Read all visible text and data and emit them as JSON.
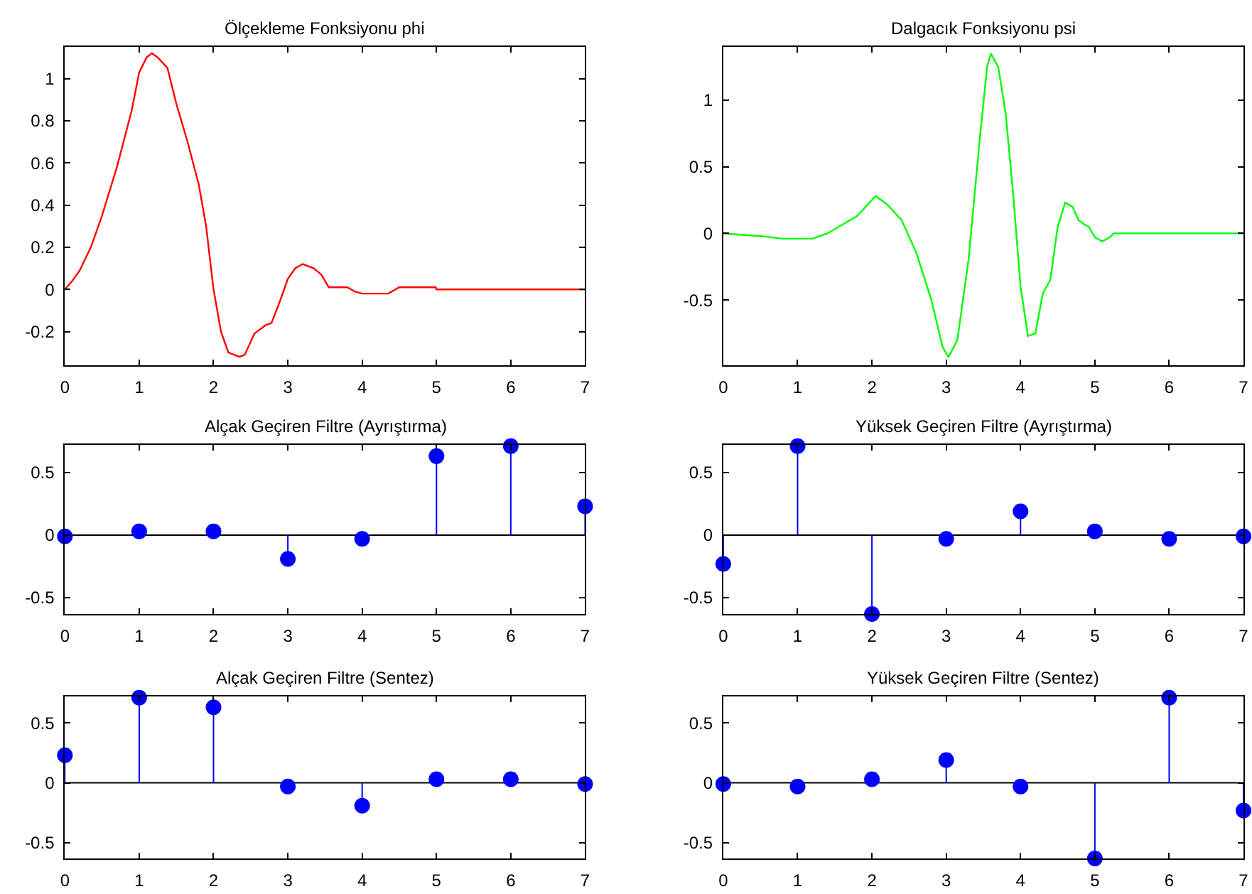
{
  "chart_data": [
    {
      "type": "line",
      "title": "Ölçekleme Fonksiyonu phi",
      "xlim": [
        0,
        7
      ],
      "ylim": [
        -0.36,
        1.15
      ],
      "xticks": [
        0,
        1,
        2,
        3,
        4,
        5,
        6,
        7
      ],
      "yticks": [
        -0.2,
        0,
        0.2,
        0.4,
        0.6,
        0.8,
        1
      ],
      "grid": false,
      "marker": "none",
      "series": [
        {
          "color": "#ff0000",
          "x": [
            0,
            0.1,
            0.2,
            0.35,
            0.5,
            0.7,
            0.9,
            1.0,
            1.1,
            1.17,
            1.25,
            1.38,
            1.5,
            1.65,
            1.8,
            1.9,
            2.0,
            2.1,
            2.2,
            2.35,
            2.42,
            2.55,
            2.7,
            2.78,
            2.9,
            3.0,
            3.1,
            3.2,
            3.35,
            3.45,
            3.55,
            3.7,
            3.8,
            3.9,
            4.0,
            4.2,
            4.35,
            4.5,
            4.99,
            5.0,
            7
          ],
          "values": [
            0,
            0.04,
            0.09,
            0.2,
            0.35,
            0.58,
            0.85,
            1.03,
            1.1,
            1.12,
            1.1,
            1.05,
            0.88,
            0.7,
            0.5,
            0.3,
            0.0,
            -0.2,
            -0.3,
            -0.32,
            -0.31,
            -0.21,
            -0.17,
            -0.16,
            -0.05,
            0.05,
            0.1,
            0.12,
            0.1,
            0.07,
            0.01,
            0.01,
            0.01,
            -0.01,
            -0.02,
            -0.02,
            -0.02,
            0.01,
            0.01,
            0,
            0
          ]
        }
      ]
    },
    {
      "type": "line",
      "title": "Dalgacık Fonksiyonu psi",
      "xlim": [
        0,
        7
      ],
      "ylim": [
        -0.99,
        1.4
      ],
      "xticks": [
        0,
        1,
        2,
        3,
        4,
        5,
        6,
        7
      ],
      "yticks": [
        -0.5,
        0,
        0.5,
        1
      ],
      "grid": false,
      "marker": "none",
      "series": [
        {
          "color": "#00ff00",
          "x": [
            0,
            0.5,
            0.8,
            1.2,
            1.4,
            1.8,
            2.05,
            2.2,
            2.4,
            2.6,
            2.8,
            2.95,
            3.03,
            3.15,
            3.3,
            3.45,
            3.55,
            3.6,
            3.7,
            3.8,
            3.9,
            4.0,
            4.1,
            4.2,
            4.3,
            4.4,
            4.5,
            4.6,
            4.7,
            4.78,
            4.85,
            4.92,
            5.0,
            5.1,
            5.2,
            5.25,
            7
          ],
          "values": [
            0,
            -0.02,
            -0.04,
            -0.04,
            0.0,
            0.13,
            0.28,
            0.22,
            0.1,
            -0.15,
            -0.5,
            -0.85,
            -0.93,
            -0.8,
            -0.2,
            0.7,
            1.25,
            1.35,
            1.25,
            0.9,
            0.3,
            -0.4,
            -0.77,
            -0.75,
            -0.45,
            -0.35,
            0.05,
            0.23,
            0.2,
            0.1,
            0.07,
            0.05,
            -0.03,
            -0.06,
            -0.03,
            0,
            0
          ]
        }
      ]
    },
    {
      "type": "lollipop",
      "ref_lines": [
        {
          "axis": "y",
          "value": 0
        }
      ],
      "title": "Alçak Geçiren Filtre (Ayrıştırma)",
      "x": [
        0,
        1,
        2,
        3,
        4,
        5,
        6,
        7
      ],
      "xlim": [
        0,
        7
      ],
      "ylim": [
        -0.63,
        0.72
      ],
      "xticks": [
        0,
        1,
        2,
        3,
        4,
        5,
        6,
        7
      ],
      "yticks": [
        -0.5,
        0,
        0.5
      ],
      "grid": false,
      "marker": "circle",
      "series": [
        {
          "color": "#0000ff",
          "values": [
            -0.01,
            0.03,
            0.03,
            -0.19,
            -0.03,
            0.63,
            0.71,
            0.23
          ]
        }
      ]
    },
    {
      "type": "lollipop",
      "ref_lines": [
        {
          "axis": "y",
          "value": 0
        }
      ],
      "title": "Yüksek Geçiren Filtre (Ayrıştırma)",
      "x": [
        0,
        1,
        2,
        3,
        4,
        5,
        6,
        7
      ],
      "xlim": [
        0,
        7
      ],
      "ylim": [
        -0.63,
        0.72
      ],
      "xticks": [
        0,
        1,
        2,
        3,
        4,
        5,
        6,
        7
      ],
      "yticks": [
        -0.5,
        0,
        0.5
      ],
      "grid": false,
      "marker": "circle",
      "series": [
        {
          "color": "#0000ff",
          "values": [
            -0.23,
            0.71,
            -0.63,
            -0.03,
            0.19,
            0.03,
            -0.03,
            -0.01
          ]
        }
      ]
    },
    {
      "type": "lollipop",
      "ref_lines": [
        {
          "axis": "y",
          "value": 0
        }
      ],
      "title": "Alçak Geçiren Filtre (Sentez)",
      "x": [
        0,
        1,
        2,
        3,
        4,
        5,
        6,
        7
      ],
      "xlim": [
        0,
        7
      ],
      "ylim": [
        -0.63,
        0.72
      ],
      "xticks": [
        0,
        1,
        2,
        3,
        4,
        5,
        6,
        7
      ],
      "yticks": [
        -0.5,
        0,
        0.5
      ],
      "grid": false,
      "marker": "circle",
      "series": [
        {
          "color": "#0000ff",
          "values": [
            0.23,
            0.71,
            0.63,
            -0.03,
            -0.19,
            0.03,
            0.03,
            -0.01
          ]
        }
      ]
    },
    {
      "type": "lollipop",
      "ref_lines": [
        {
          "axis": "y",
          "value": 0
        }
      ],
      "title": "Yüksek Geçiren Filtre (Sentez)",
      "x": [
        0,
        1,
        2,
        3,
        4,
        5,
        6,
        7
      ],
      "xlim": [
        0,
        7
      ],
      "ylim": [
        -0.63,
        0.72
      ],
      "xticks": [
        0,
        1,
        2,
        3,
        4,
        5,
        6,
        7
      ],
      "yticks": [
        -0.5,
        0,
        0.5
      ],
      "grid": false,
      "marker": "circle",
      "series": [
        {
          "color": "#0000ff",
          "values": [
            -0.01,
            -0.03,
            0.03,
            0.19,
            -0.03,
            -0.63,
            0.71,
            -0.23
          ]
        }
      ]
    }
  ]
}
